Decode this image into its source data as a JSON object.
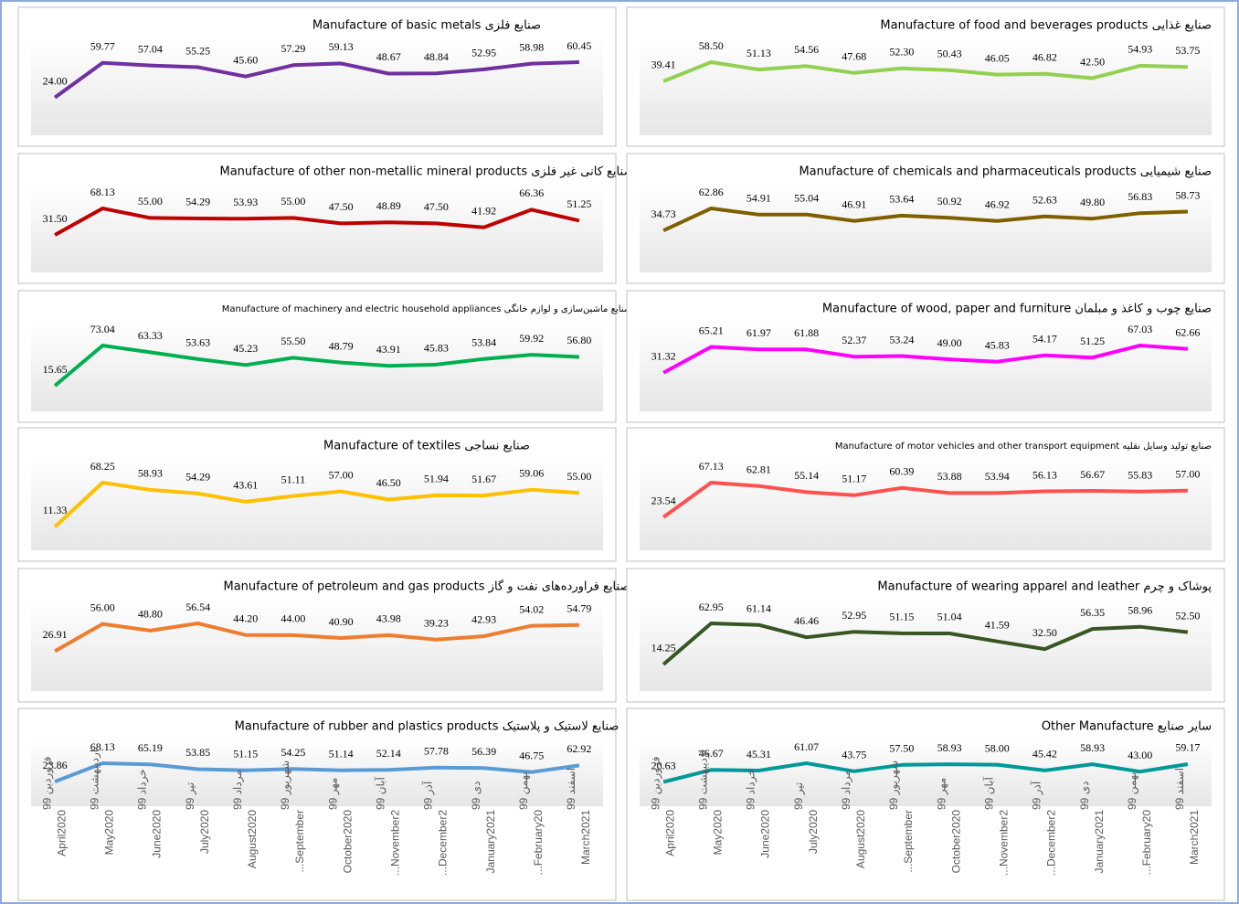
{
  "chart_data": [
    {
      "type": "line",
      "title": "صنایع فلزی Manufacture of basic metals",
      "color": "#7030a0",
      "values": [
        24.0,
        59.77,
        57.04,
        55.25,
        45.6,
        57.29,
        59.13,
        48.67,
        48.84,
        52.95,
        58.98,
        60.45
      ],
      "value_labels": [
        "24.00",
        "59.77",
        "57.04",
        "55.25",
        "45.60",
        "57.29",
        "59.13",
        "48.67",
        "48.84",
        "52.95",
        "58.98",
        "60.45"
      ]
    },
    {
      "type": "line",
      "title": "صنایع غذایی Manufacture of food and beverages products",
      "color": "#92d050",
      "values": [
        39.41,
        58.5,
        51.13,
        54.56,
        47.68,
        52.3,
        50.43,
        46.05,
        46.82,
        42.5,
        54.93,
        53.75
      ],
      "value_labels": [
        "39.41",
        "58.50",
        "51.13",
        "54.56",
        "47.68",
        "52.30",
        "50.43",
        "46.05",
        "46.82",
        "42.50",
        "54.93",
        "53.75"
      ]
    },
    {
      "type": "line",
      "title": "صنایع کانی غیر فلزی Manufacture of other non-metallic mineral products",
      "color": "#c00000",
      "values": [
        31.5,
        68.13,
        55.0,
        54.29,
        53.93,
        55.0,
        47.5,
        48.89,
        47.5,
        41.92,
        66.36,
        51.25
      ],
      "value_labels": [
        "31.50",
        "68.13",
        "55.00",
        "54.29",
        "53.93",
        "55.00",
        "47.50",
        "48.89",
        "47.50",
        "41.92",
        "66.36",
        "51.25"
      ]
    },
    {
      "type": "line",
      "title": "صنایع شیمیایی Manufacture of chemicals and pharmaceuticals products",
      "color": "#7f6000",
      "values": [
        34.73,
        62.86,
        54.91,
        55.04,
        46.91,
        53.64,
        50.92,
        46.92,
        52.63,
        49.8,
        56.83,
        58.73
      ],
      "value_labels": [
        "34.73",
        "62.86",
        "54.91",
        "55.04",
        "46.91",
        "53.64",
        "50.92",
        "46.92",
        "52.63",
        "49.80",
        "56.83",
        "58.73"
      ]
    },
    {
      "type": "line",
      "title": "صنایع ماشین‌سازی و لوازم خانگی Manufacture of machinery and electric household appliances",
      "color": "#00b050",
      "values": [
        15.65,
        73.04,
        63.33,
        53.63,
        45.23,
        55.5,
        48.79,
        43.91,
        45.83,
        53.84,
        59.92,
        56.8
      ],
      "value_labels": [
        "15.65",
        "73.04",
        "63.33",
        "53.63",
        "45.23",
        "55.50",
        "48.79",
        "43.91",
        "45.83",
        "53.84",
        "59.92",
        "56.80"
      ]
    },
    {
      "type": "line",
      "title": "صنایع چوب و کاغذ و مبلمان Manufacture of wood, paper and furniture",
      "color": "#ff00ff",
      "values": [
        31.32,
        65.21,
        61.97,
        61.88,
        52.37,
        53.24,
        49.0,
        45.83,
        54.17,
        51.25,
        67.03,
        62.66
      ],
      "value_labels": [
        "31.32",
        "65.21",
        "61.97",
        "61.88",
        "52.37",
        "53.24",
        "49.00",
        "45.83",
        "54.17",
        "51.25",
        "67.03",
        "62.66"
      ]
    },
    {
      "type": "line",
      "title": "صنایع نساجی Manufacture of textiles",
      "color": "#ffc000",
      "values": [
        11.33,
        68.25,
        58.93,
        54.29,
        43.61,
        51.11,
        57.0,
        46.5,
        51.94,
        51.67,
        59.06,
        55.0
      ],
      "value_labels": [
        "11.33",
        "68.25",
        "58.93",
        "54.29",
        "43.61",
        "51.11",
        "57.00",
        "46.50",
        "51.94",
        "51.67",
        "59.06",
        "55.00"
      ]
    },
    {
      "type": "line",
      "title": "صنایع تولید وسایل نقلیه Manufacture of motor vehicles and other transport equipment",
      "color": "#ff5050",
      "values": [
        23.54,
        67.13,
        62.81,
        55.14,
        51.17,
        60.39,
        53.88,
        53.94,
        56.13,
        56.67,
        55.83,
        57.0
      ],
      "value_labels": [
        "23.54",
        "67.13",
        "62.81",
        "55.14",
        "51.17",
        "60.39",
        "53.88",
        "53.94",
        "56.13",
        "56.67",
        "55.83",
        "57.00"
      ]
    },
    {
      "type": "line",
      "title": "صنایع فراورده‌های نفت و گاز Manufacture of petroleum and gas products",
      "color": "#ed7d31",
      "values": [
        26.91,
        56.0,
        48.8,
        56.54,
        44.2,
        44.0,
        40.9,
        43.98,
        39.23,
        42.93,
        54.02,
        54.79
      ],
      "value_labels": [
        "26.91",
        "56.00",
        "48.80",
        "56.54",
        "44.20",
        "44.00",
        "40.90",
        "43.98",
        "39.23",
        "42.93",
        "54.02",
        "54.79"
      ]
    },
    {
      "type": "line",
      "title": "پوشاک و چرم Manufacture of wearing apparel and leather",
      "color": "#375623",
      "values": [
        14.25,
        62.95,
        61.14,
        46.46,
        52.95,
        51.15,
        51.04,
        41.59,
        32.5,
        56.35,
        58.96,
        52.5
      ],
      "value_labels": [
        "14.25",
        "62.95",
        "61.14",
        "46.46",
        "52.95",
        "51.15",
        "51.04",
        "41.59",
        "32.50",
        "56.35",
        "58.96",
        "52.50"
      ]
    },
    {
      "type": "line",
      "title": "صنایع لاستیک و پلاستیک Manufacture of rubber and plastics products",
      "color": "#5b9bd5",
      "categories": [
        "April2020",
        "May2020",
        "June2020",
        "July2020",
        "August2020",
        "...September",
        "October2020",
        "...November2",
        "...December2",
        "January2021",
        "...February20",
        "March2021"
      ],
      "categories_fa": [
        "فروردین 99",
        "اردیبهشت 99",
        "خرداد 99",
        "تیر 99",
        "مرداد 99",
        "شهریور 99",
        "مهر 99",
        "آبان 99",
        "آذر 99",
        "دی 99",
        "بهمن 99",
        "اسفند 99"
      ],
      "values": [
        23.86,
        68.13,
        65.19,
        53.85,
        51.15,
        54.25,
        51.14,
        52.14,
        57.78,
        56.39,
        46.75,
        62.92
      ],
      "value_labels": [
        "23.86",
        "68.13",
        "65.19",
        "53.85",
        "51.15",
        "54.25",
        "51.14",
        "52.14",
        "57.78",
        "56.39",
        "46.75",
        "62.92"
      ]
    },
    {
      "type": "line",
      "title": "سایر صنایع Other Manufacture",
      "color": "#00999a",
      "categories": [
        "April2020",
        "May2020",
        "June2020",
        "July2020",
        "August2020",
        "...September",
        "October2020",
        "...November2",
        "...December2",
        "January2021",
        "...February20",
        "March2021"
      ],
      "categories_fa": [
        "فروردین 99",
        "اردیبهشت 99",
        "خرداد 99",
        "تیر 99",
        "مرداد 99",
        "شهریور 99",
        "مهر 99",
        "آبان 99",
        "آذر 99",
        "دی 99",
        "بهمن 99",
        "اسفند 99"
      ],
      "values": [
        20.63,
        46.67,
        45.31,
        61.07,
        43.75,
        57.5,
        58.93,
        58.0,
        45.42,
        58.93,
        43.0,
        59.17
      ],
      "value_labels": [
        "20.63",
        "46.67",
        "45.31",
        "61.07",
        "43.75",
        "57.50",
        "58.93",
        "58.00",
        "45.42",
        "58.93",
        "43.00",
        "59.17"
      ]
    }
  ]
}
